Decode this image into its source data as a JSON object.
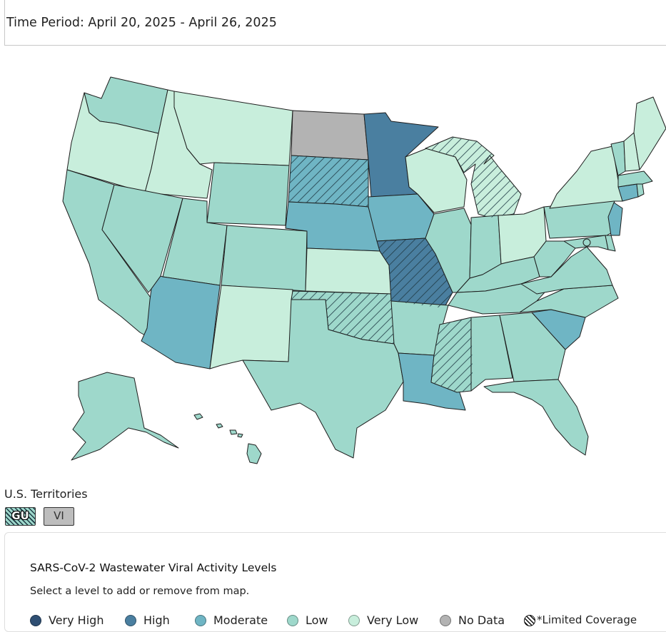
{
  "time_period": "Time Period: April 20, 2025 - April 26, 2025",
  "territories": {
    "label": "U.S. Territories",
    "items": [
      {
        "code": "GU",
        "level": "low",
        "limited": true
      },
      {
        "code": "VI",
        "level": "nodata",
        "limited": false
      }
    ]
  },
  "legend": {
    "title": "SARS-CoV-2 Wastewater Viral Activity Levels",
    "subtitle": "Select a level to add or remove from map.",
    "levels": [
      {
        "key": "veryhigh",
        "label": "Very High",
        "color": "#2f4f73"
      },
      {
        "key": "high",
        "label": "High",
        "color": "#4a7fa0"
      },
      {
        "key": "moderate",
        "label": "Moderate",
        "color": "#6fb5c4"
      },
      {
        "key": "low",
        "label": "Low",
        "color": "#9ed8cb"
      },
      {
        "key": "verylow",
        "label": "Very Low",
        "color": "#c8eedc"
      },
      {
        "key": "nodata",
        "label": "No Data",
        "color": "#b3b3b3"
      }
    ],
    "limited_label": "*Limited Coverage"
  },
  "map": {
    "states": [
      {
        "id": "WA",
        "level": "low",
        "limited": false
      },
      {
        "id": "OR",
        "level": "verylow",
        "limited": false
      },
      {
        "id": "CA",
        "level": "low",
        "limited": false
      },
      {
        "id": "ID",
        "level": "verylow",
        "limited": false
      },
      {
        "id": "NV",
        "level": "low",
        "limited": false
      },
      {
        "id": "MT",
        "level": "verylow",
        "limited": false
      },
      {
        "id": "WY",
        "level": "low",
        "limited": false
      },
      {
        "id": "UT",
        "level": "low",
        "limited": false
      },
      {
        "id": "AZ",
        "level": "moderate",
        "limited": false
      },
      {
        "id": "CO",
        "level": "low",
        "limited": false
      },
      {
        "id": "NM",
        "level": "verylow",
        "limited": false
      },
      {
        "id": "ND",
        "level": "nodata",
        "limited": false
      },
      {
        "id": "SD",
        "level": "moderate",
        "limited": true
      },
      {
        "id": "NE",
        "level": "moderate",
        "limited": false
      },
      {
        "id": "KS",
        "level": "verylow",
        "limited": false
      },
      {
        "id": "OK",
        "level": "low",
        "limited": true
      },
      {
        "id": "TX",
        "level": "low",
        "limited": false
      },
      {
        "id": "MN",
        "level": "high",
        "limited": false
      },
      {
        "id": "IA",
        "level": "moderate",
        "limited": false
      },
      {
        "id": "MO",
        "level": "high",
        "limited": true
      },
      {
        "id": "AR",
        "level": "low",
        "limited": false
      },
      {
        "id": "LA",
        "level": "moderate",
        "limited": false
      },
      {
        "id": "WI",
        "level": "verylow",
        "limited": false
      },
      {
        "id": "IL",
        "level": "low",
        "limited": false
      },
      {
        "id": "MI",
        "level": "verylow",
        "limited": true
      },
      {
        "id": "IN",
        "level": "low",
        "limited": false
      },
      {
        "id": "OH",
        "level": "verylow",
        "limited": false
      },
      {
        "id": "KY",
        "level": "low",
        "limited": false
      },
      {
        "id": "TN",
        "level": "low",
        "limited": false
      },
      {
        "id": "MS",
        "level": "low",
        "limited": true
      },
      {
        "id": "AL",
        "level": "low",
        "limited": false
      },
      {
        "id": "GA",
        "level": "low",
        "limited": false
      },
      {
        "id": "FL",
        "level": "low",
        "limited": false
      },
      {
        "id": "SC",
        "level": "moderate",
        "limited": false
      },
      {
        "id": "NC",
        "level": "low",
        "limited": false
      },
      {
        "id": "VA",
        "level": "low",
        "limited": false
      },
      {
        "id": "WV",
        "level": "low",
        "limited": false
      },
      {
        "id": "PA",
        "level": "low",
        "limited": false
      },
      {
        "id": "NY",
        "level": "verylow",
        "limited": false
      },
      {
        "id": "MD",
        "level": "low",
        "limited": false
      },
      {
        "id": "DE",
        "level": "low",
        "limited": false
      },
      {
        "id": "NJ",
        "level": "moderate",
        "limited": false
      },
      {
        "id": "CT",
        "level": "moderate",
        "limited": false
      },
      {
        "id": "RI",
        "level": "low",
        "limited": false
      },
      {
        "id": "MA",
        "level": "low",
        "limited": false
      },
      {
        "id": "VT",
        "level": "low",
        "limited": false
      },
      {
        "id": "NH",
        "level": "verylow",
        "limited": false
      },
      {
        "id": "ME",
        "level": "verylow",
        "limited": false
      },
      {
        "id": "AK",
        "level": "low",
        "limited": false
      },
      {
        "id": "HI",
        "level": "low",
        "limited": false
      },
      {
        "id": "DC",
        "level": "low",
        "limited": false
      }
    ]
  }
}
